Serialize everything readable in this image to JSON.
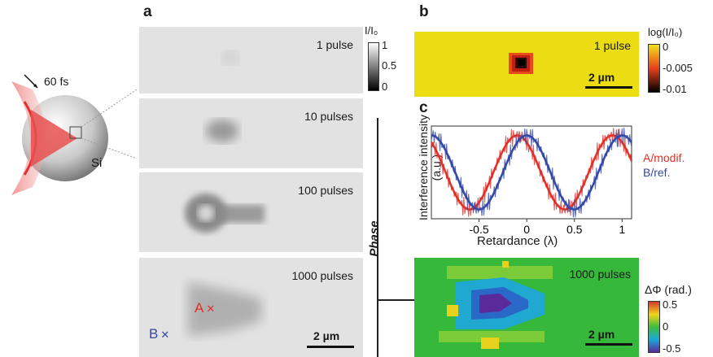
{
  "panels": {
    "a": "a",
    "b": "b",
    "c": "c"
  },
  "schematic": {
    "pulse_duration": "60 fs",
    "material": "Si"
  },
  "panel_a": {
    "tiles": [
      "1 pulse",
      "10 pulses",
      "100 pulses",
      "1000 pulses"
    ],
    "colorbar": {
      "title": "I/I₀",
      "ticks": [
        "1",
        "0.5",
        "0"
      ],
      "colors": [
        "#ffffff",
        "#000000"
      ]
    },
    "markers": {
      "A": "A",
      "B": "B",
      "A_color": "#e0302a",
      "B_color": "#3448a8"
    },
    "scalebar": "2 µm"
  },
  "panel_b": {
    "label": "1 pulse",
    "scalebar": "2 µm",
    "colorbar": {
      "title": "log(I/I₀)",
      "ticks": [
        "0",
        "-0.005",
        "-0.01"
      ],
      "colors": [
        "#f2e21c",
        "#e8401c",
        "#000000"
      ]
    }
  },
  "side_label": "Phase",
  "chart_data": {
    "type": "line",
    "xlabel": "Retardance (λ)",
    "ylabel": "Interference intensity (a.u.)",
    "xlim": [
      -1.0,
      1.1
    ],
    "x_ticks": [
      "-0.5",
      "0",
      "0.5",
      "1"
    ],
    "x_tick_values": [
      -0.5,
      0,
      0.5,
      1
    ],
    "series": [
      {
        "name": "A/modif.",
        "color": "#e0302a",
        "period": 1.0,
        "phase_center": -0.1
      },
      {
        "name": "B/ref.",
        "color": "#3448a8",
        "period": 1.0,
        "phase_center": 0.0
      }
    ]
  },
  "panel_c_map": {
    "label": "1000 pulses",
    "scalebar": "2 µm",
    "colorbar": {
      "title": "ΔΦ (rad.)",
      "ticks": [
        "0.5",
        "0",
        "-0.5"
      ],
      "colors": [
        "#d23a2a",
        "#f4d41c",
        "#3cbf3c",
        "#1aa8d8",
        "#5a2a9a"
      ]
    }
  }
}
